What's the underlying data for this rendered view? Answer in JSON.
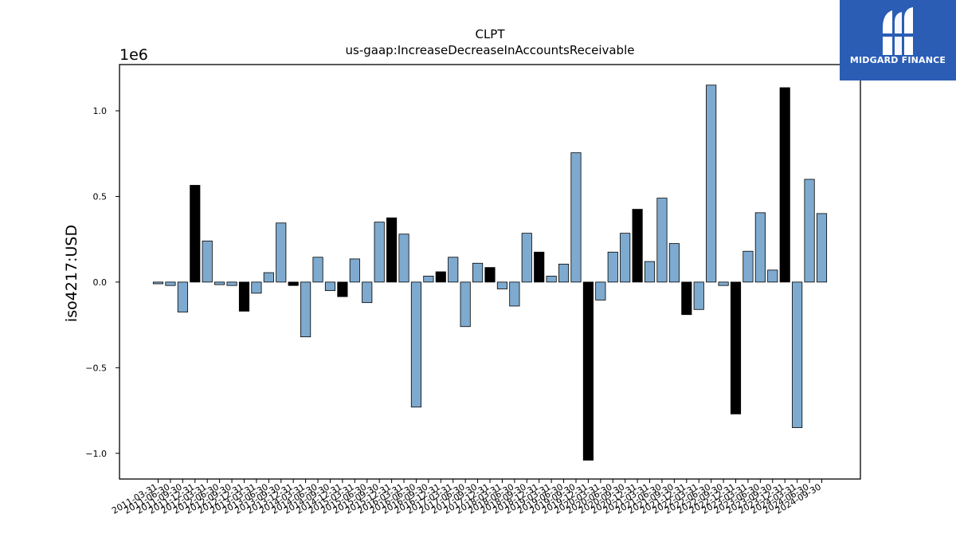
{
  "logo": {
    "text": "MIDGARD FINANCE",
    "icon": "midgard-finance-logo-icon",
    "bg_color": "#2b5db5"
  },
  "chart_data": {
    "type": "bar",
    "title": "CLPT",
    "subtitle": "us-gaap:IncreaseDecreaseInAccountsReceivable",
    "xlabel": "",
    "ylabel": "iso4217:USD",
    "y_scale_label": "1e6",
    "ylim": [
      -1.15,
      1.27
    ],
    "yticks": [
      -1.0,
      -0.5,
      0.0,
      0.5,
      1.0
    ],
    "ytick_labels": [
      "−1.0",
      "−0.5",
      "0.0",
      "0.5",
      "1.0"
    ],
    "colors": {
      "quarter": "#7eaacf",
      "annual": "#000000",
      "edge": "#000000"
    },
    "grid": false,
    "categories": [
      "2011-03-31",
      "2011-06-30",
      "2011-09-30",
      "2011-12-31",
      "2012-03-31",
      "2012-06-30",
      "2012-09-30",
      "2012-12-31",
      "2013-03-31",
      "2013-06-30",
      "2013-09-30",
      "2013-12-31",
      "2014-03-31",
      "2014-06-30",
      "2014-09-30",
      "2014-12-31",
      "2015-03-31",
      "2015-06-30",
      "2015-09-30",
      "2015-12-31",
      "2016-03-31",
      "2016-06-30",
      "2016-09-30",
      "2016-12-31",
      "2017-03-31",
      "2017-06-30",
      "2017-09-30",
      "2017-12-31",
      "2018-03-31",
      "2018-06-30",
      "2018-09-30",
      "2018-12-31",
      "2019-03-31",
      "2019-06-30",
      "2019-09-30",
      "2019-12-31",
      "2020-03-31",
      "2020-06-30",
      "2020-09-30",
      "2020-12-31",
      "2021-03-31",
      "2021-06-30",
      "2021-09-30",
      "2021-12-31",
      "2022-03-31",
      "2022-06-30",
      "2022-09-30",
      "2022-12-31",
      "2023-03-31",
      "2023-06-30",
      "2023-09-30",
      "2023-12-31",
      "2024-03-31",
      "2024-06-30",
      "2024-09-30"
    ],
    "values": [
      -0.01,
      -0.02,
      -0.175,
      0.565,
      0.24,
      -0.015,
      -0.02,
      -0.17,
      -0.065,
      0.055,
      0.345,
      -0.02,
      -0.32,
      0.145,
      -0.05,
      -0.085,
      0.135,
      -0.12,
      0.35,
      0.375,
      0.28,
      -0.73,
      0.035,
      0.06,
      0.145,
      -0.26,
      0.11,
      0.085,
      -0.04,
      -0.14,
      0.285,
      0.175,
      0.035,
      0.105,
      0.755,
      -1.04,
      -0.105,
      0.175,
      0.285,
      0.425,
      0.12,
      0.49,
      0.225,
      -0.19,
      -0.16,
      1.15,
      -0.02,
      -0.77,
      0.18,
      0.405,
      0.07,
      1.135,
      -0.85,
      0.6,
      0.4
    ],
    "annual_flags": [
      0,
      0,
      0,
      1,
      0,
      0,
      0,
      1,
      0,
      0,
      0,
      1,
      0,
      0,
      0,
      1,
      0,
      0,
      0,
      1,
      0,
      0,
      0,
      1,
      0,
      0,
      0,
      1,
      0,
      0,
      0,
      1,
      0,
      0,
      0,
      1,
      0,
      0,
      0,
      1,
      0,
      0,
      0,
      1,
      0,
      0,
      0,
      1,
      0,
      0,
      0,
      1,
      0,
      0,
      0
    ]
  }
}
